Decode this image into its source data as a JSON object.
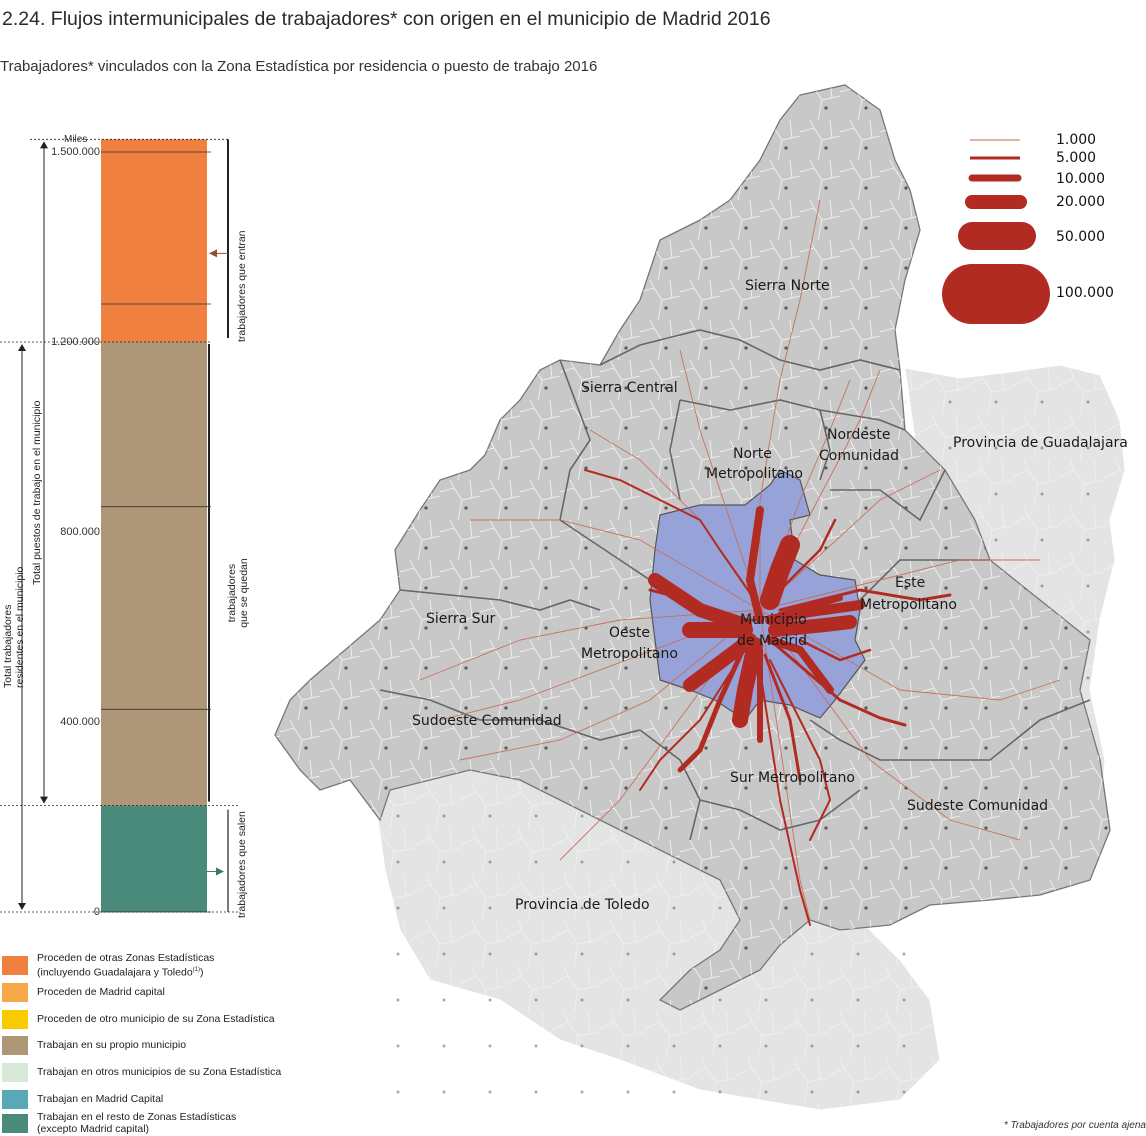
{
  "title": "2.24. Flujos intermunicipales de trabajadores* con origen en el municipio de Madrid 2016",
  "subtitle": "Trabajadores* vinculados con la Zona Estadística por residencia o puesto de trabajo 2016",
  "bar_chart": {
    "unit_label": "Miles",
    "ticks": [
      "1.500.000",
      "1.200.000",
      "800.000",
      "400.000",
      "0"
    ],
    "labels": {
      "entrada": "trabajadores que entran",
      "quedan": "trabajadores que se quedan",
      "salen": "trabajadores que salen",
      "total_puestos": "Total puestos de trabajo en el municipio",
      "total_residentes_1": "Total trabajadores",
      "total_residentes_2": "residentes en el municipio"
    }
  },
  "chart_data": {
    "type": "bar",
    "stacked": true,
    "ylim": [
      0,
      1525000
    ],
    "ticks": [
      0,
      400000,
      800000,
      1200000,
      1500000
    ],
    "segments": [
      {
        "name": "Trabajan en el resto de Zonas Estadísticas (excepto Madrid capital)",
        "value": 210000,
        "color": "#4a8a7a"
      },
      {
        "name": "Trabajan en su propio municipio",
        "value": 915000,
        "color": "#ad9777"
      },
      {
        "name": "Proceden de otras Zonas Estadísticas (incluyendo Guadalajara y Toledo)",
        "value": 400000,
        "color": "#f08040"
      }
    ]
  },
  "legend": [
    {
      "text": "Proceden de otras Zonas Estadísticas",
      "text2": "(incluyendo Guadalajara y Toledo",
      "sup": "(1)",
      "close": ")",
      "color": "#f08040"
    },
    {
      "text": "Proceden de Madrid capital",
      "color": "#f6a848"
    },
    {
      "text": "Proceden de otro municipio de su Zona Estadística",
      "color": "#f8cc00"
    },
    {
      "text": "Trabajan en su propio municipio",
      "color": "#ad9777"
    },
    {
      "text": "Trabajan en otros municipios de su Zona Estadística",
      "color": "#d6e8d6"
    },
    {
      "text": "Trabajan en Madrid Capital",
      "color": "#58a8b8"
    },
    {
      "text": "Trabajan en el resto de Zonas Estadísticas",
      "text2": " (excepto Madrid capital)",
      "color": "#4a8a7a"
    }
  ],
  "flow_legend": [
    "1.000",
    "5.000",
    "10.000",
    "20.000",
    "50.000",
    "100.000"
  ],
  "map": {
    "colors": {
      "region": "#c8c8c8",
      "outside": "#e4e4e4",
      "madrid": "#97a3d8",
      "flow": "#b22b22",
      "border": "#666666"
    },
    "labels": {
      "sierra_norte": "Sierra Norte",
      "sierra_central": "Sierra Central",
      "norte_metro_1": "Norte",
      "norte_metro_2": "Metropolitano",
      "nordeste_1": "Nordeste",
      "nordeste_2": "Comunidad",
      "guadalajara": "Provincia de Guadalajara",
      "este_1": "Este",
      "este_2": "Metropolitano",
      "madrid_1": "Municipio",
      "madrid_2": "de Madrid",
      "oeste_1": "Oeste",
      "oeste_2": "Metropolitano",
      "sierra_sur": "Sierra Sur",
      "sudoeste": "Sudoeste Comunidad",
      "sur_metro": "Sur Metropolitano",
      "sudeste": "Sudeste Comunidad",
      "toledo": "Provincia de Toledo"
    }
  },
  "footnote": "* Trabajadores por cuenta ajena"
}
